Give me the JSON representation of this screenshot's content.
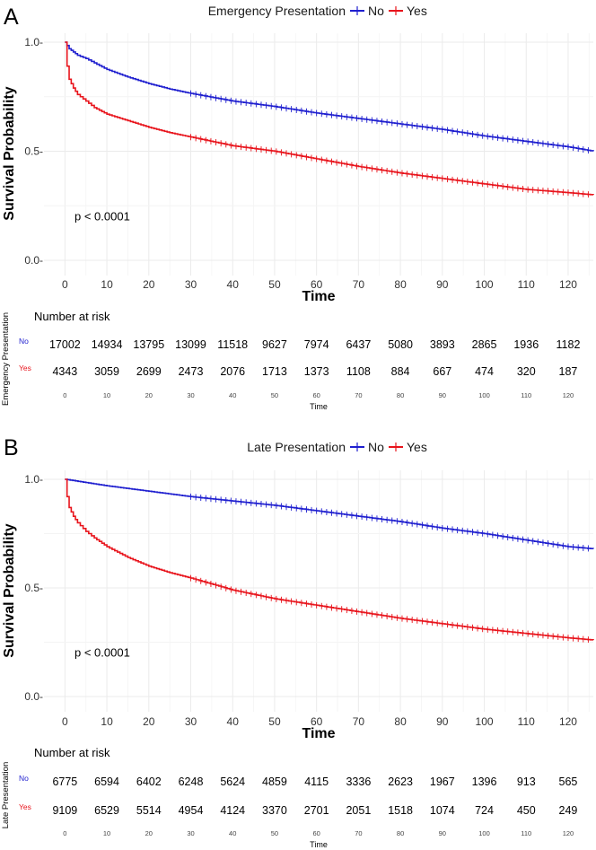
{
  "chart_data": [
    {
      "panel_letter": "A",
      "type": "line",
      "title": "Emergency Presentation",
      "legend_labels": [
        "No",
        "Yes"
      ],
      "xlabel": "Time",
      "ylabel": "Survival Probability",
      "xlim": [
        -5,
        126
      ],
      "ylim": [
        0,
        1
      ],
      "x_ticks": [
        "0",
        "10",
        "20",
        "30",
        "40",
        "50",
        "60",
        "70",
        "80",
        "90",
        "100",
        "110",
        "120"
      ],
      "y_ticks": [
        "0.0-",
        "0.5-",
        "1.0-"
      ],
      "p_value_text": "p < 0.0001",
      "series": [
        {
          "name": "No",
          "color": "#1f1fcf",
          "x": [
            0,
            1,
            2,
            3,
            5,
            7,
            10,
            15,
            20,
            25,
            30,
            40,
            50,
            60,
            70,
            80,
            90,
            100,
            110,
            120,
            126
          ],
          "y": [
            1.0,
            0.97,
            0.955,
            0.94,
            0.925,
            0.905,
            0.875,
            0.84,
            0.81,
            0.785,
            0.765,
            0.73,
            0.705,
            0.675,
            0.65,
            0.625,
            0.6,
            0.57,
            0.545,
            0.52,
            0.5
          ]
        },
        {
          "name": "Yes",
          "color": "#e8141c",
          "x": [
            0,
            0.5,
            1,
            2,
            3,
            5,
            7,
            10,
            15,
            20,
            25,
            30,
            40,
            50,
            60,
            70,
            80,
            90,
            100,
            110,
            120,
            126
          ],
          "y": [
            1.0,
            0.89,
            0.83,
            0.79,
            0.76,
            0.73,
            0.7,
            0.67,
            0.64,
            0.61,
            0.585,
            0.565,
            0.525,
            0.5,
            0.465,
            0.43,
            0.4,
            0.375,
            0.35,
            0.325,
            0.31,
            0.3
          ]
        }
      ],
      "risk_table": {
        "title": "Number at risk",
        "strata_title": "Emergency Presentation",
        "xlabel": "Time",
        "times": [
          "0",
          "10",
          "20",
          "30",
          "40",
          "50",
          "60",
          "70",
          "80",
          "90",
          "100",
          "110",
          "120"
        ],
        "rows": [
          {
            "group": "No",
            "color": "#1f1fcf",
            "counts": [
              "17002",
              "14934",
              "13795",
              "13099",
              "11518",
              "9627",
              "7974",
              "6437",
              "5080",
              "3893",
              "2865",
              "1936",
              "1182"
            ]
          },
          {
            "group": "Yes",
            "color": "#e8141c",
            "counts": [
              "4343",
              "3059",
              "2699",
              "2473",
              "2076",
              "1713",
              "1373",
              "1108",
              "884",
              "667",
              "474",
              "320",
              "187"
            ]
          }
        ]
      }
    },
    {
      "panel_letter": "B",
      "type": "line",
      "title": "Late Presentation",
      "legend_labels": [
        "No",
        "Yes"
      ],
      "xlabel": "Time",
      "ylabel": "Survival Probability",
      "xlim": [
        -5,
        126
      ],
      "ylim": [
        0,
        1
      ],
      "x_ticks": [
        "0",
        "10",
        "20",
        "30",
        "40",
        "50",
        "60",
        "70",
        "80",
        "90",
        "100",
        "110",
        "120"
      ],
      "y_ticks": [
        "0.0-",
        "0.5-",
        "1.0-"
      ],
      "p_value_text": "p < 0.0001",
      "series": [
        {
          "name": "No",
          "color": "#1f1fcf",
          "x": [
            0,
            5,
            10,
            20,
            30,
            40,
            50,
            60,
            70,
            80,
            90,
            100,
            110,
            120,
            126
          ],
          "y": [
            1.0,
            0.985,
            0.97,
            0.945,
            0.92,
            0.9,
            0.88,
            0.855,
            0.83,
            0.805,
            0.775,
            0.75,
            0.72,
            0.69,
            0.68
          ]
        },
        {
          "name": "Yes",
          "color": "#e8141c",
          "x": [
            0,
            0.5,
            1,
            2,
            3,
            5,
            7,
            10,
            15,
            20,
            25,
            30,
            40,
            50,
            60,
            70,
            80,
            90,
            100,
            110,
            120,
            126
          ],
          "y": [
            1.0,
            0.92,
            0.87,
            0.83,
            0.8,
            0.76,
            0.73,
            0.69,
            0.64,
            0.6,
            0.57,
            0.545,
            0.49,
            0.45,
            0.42,
            0.39,
            0.36,
            0.335,
            0.31,
            0.29,
            0.27,
            0.26
          ]
        }
      ],
      "risk_table": {
        "title": "Number at risk",
        "strata_title": "Late Presentation",
        "xlabel": "Time",
        "times": [
          "0",
          "10",
          "20",
          "30",
          "40",
          "50",
          "60",
          "70",
          "80",
          "90",
          "100",
          "110",
          "120"
        ],
        "rows": [
          {
            "group": "No",
            "color": "#1f1fcf",
            "counts": [
              "6775",
              "6594",
              "6402",
              "6248",
              "5624",
              "4859",
              "4115",
              "3336",
              "2623",
              "1967",
              "1396",
              "913",
              "565"
            ]
          },
          {
            "group": "Yes",
            "color": "#e8141c",
            "counts": [
              "9109",
              "6529",
              "5514",
              "4954",
              "4124",
              "3370",
              "2701",
              "2051",
              "1518",
              "1074",
              "724",
              "450",
              "249"
            ]
          }
        ]
      }
    }
  ]
}
